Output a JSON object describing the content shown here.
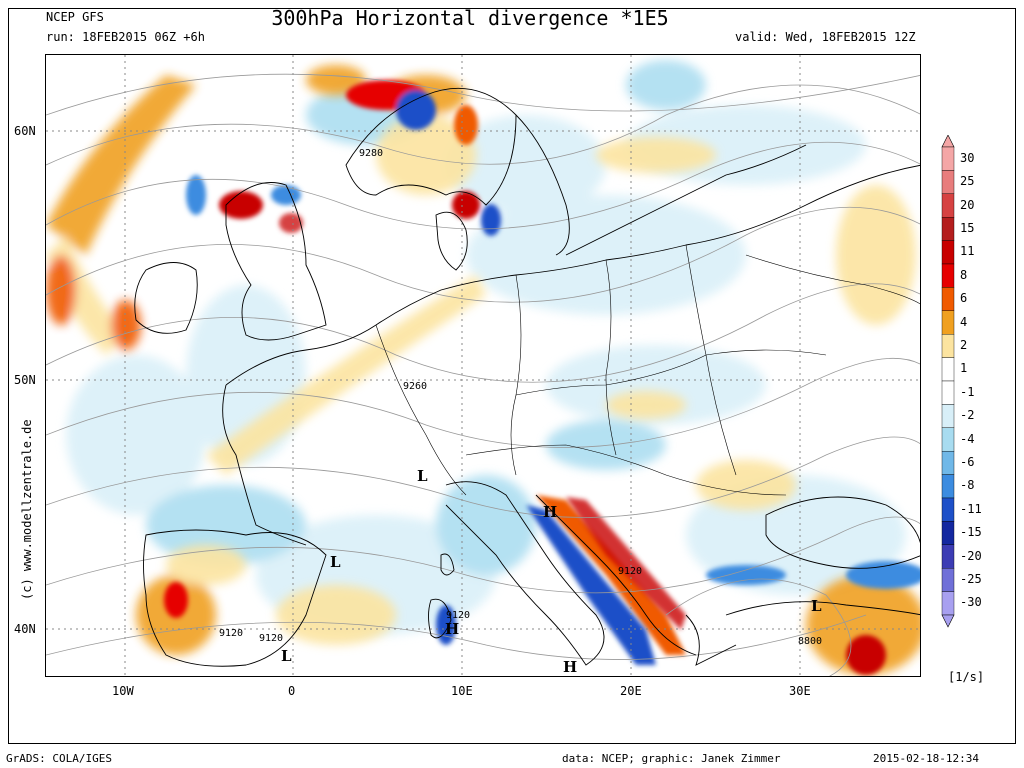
{
  "header": {
    "model": "NCEP GFS",
    "run": "run: 18FEB2015 06Z +6h",
    "title": "300hPa Horizontal divergence *1E5",
    "valid": "valid: Wed, 18FEB2015 12Z"
  },
  "axes": {
    "lat_labels": [
      "60N",
      "50N",
      "40N"
    ],
    "lon_labels": [
      "10W",
      "0",
      "10E",
      "20E",
      "30E"
    ]
  },
  "side_credit": "(c) www.modellzentrale.de",
  "map_labels": {
    "contours": [
      "9280",
      "9260",
      "9120",
      "9120",
      "9120",
      "9120",
      "8800"
    ],
    "pressure_centers": [
      "L",
      "L",
      "H",
      "H",
      "H",
      "L",
      "L"
    ]
  },
  "legend": {
    "units": "[1/s]",
    "levels": [
      "30",
      "25",
      "20",
      "15",
      "11",
      "8",
      "6",
      "4",
      "2",
      "1",
      "-1",
      "-2",
      "-4",
      "-6",
      "-8",
      "-11",
      "-15",
      "-20",
      "-25",
      "-30"
    ],
    "colors": [
      "#f4a6a6",
      "#e87d7d",
      "#d64242",
      "#b41e1e",
      "#c80000",
      "#e60000",
      "#f05a00",
      "#f0a020",
      "#fce4a0",
      "#ffffff",
      "#ffffff",
      "#d8eff8",
      "#a8dcf0",
      "#70b8e8",
      "#3c8ce0",
      "#1e50c8",
      "#1428a0",
      "#3c3cb4",
      "#7070d8",
      "#a8a0f0"
    ]
  },
  "footer": {
    "left": "GrADS: COLA/IGES",
    "center": "data: NCEP; graphic: Janek Zimmer",
    "right": "2015-02-18-12:34"
  }
}
